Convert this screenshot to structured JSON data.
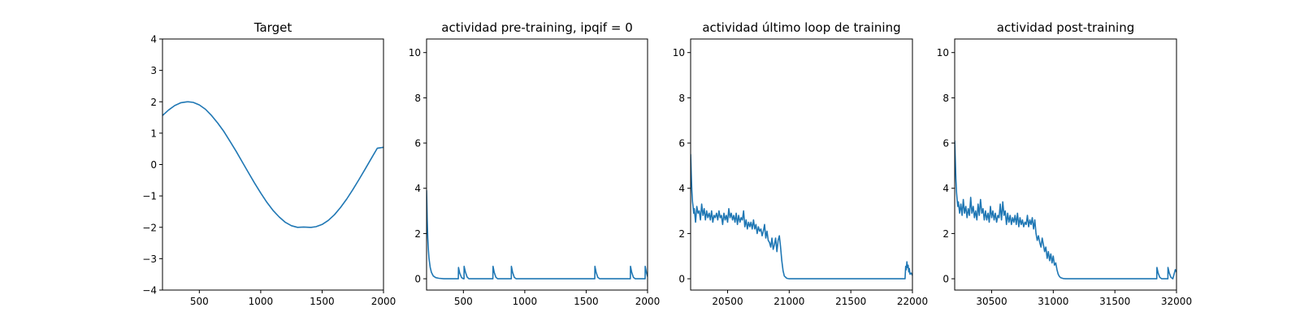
{
  "chart_data": [
    {
      "type": "line",
      "title": "Target",
      "xlabel": "",
      "ylabel": "",
      "xlim": [
        200,
        2000
      ],
      "ylim": [
        -4,
        4
      ],
      "x_ticks": [
        500,
        1000,
        1500,
        2000
      ],
      "y_ticks": [
        -4,
        -3,
        -2,
        -1,
        0,
        1,
        2,
        3,
        4
      ],
      "line_color": "#1f77b4",
      "grid": false,
      "x": [
        200,
        250,
        300,
        350,
        400,
        412,
        450,
        500,
        550,
        600,
        650,
        700,
        750,
        800,
        850,
        900,
        950,
        1000,
        1050,
        1100,
        1150,
        1200,
        1250,
        1300,
        1350,
        1400,
        1412,
        1450,
        1500,
        1550,
        1600,
        1650,
        1700,
        1750,
        1800,
        1850,
        1900,
        1950,
        2000
      ],
      "y": [
        1.56,
        1.74,
        1.88,
        1.97,
        2.0,
        2.0,
        1.98,
        1.9,
        1.76,
        1.56,
        1.32,
        1.05,
        0.74,
        0.42,
        0.08,
        -0.26,
        -0.59,
        -0.91,
        -1.2,
        -1.46,
        -1.67,
        -1.84,
        -1.95,
        -2.0,
        -1.99,
        -2.0,
        -2.0,
        -1.98,
        -1.91,
        -1.78,
        -1.6,
        -1.37,
        -1.1,
        -0.8,
        -0.48,
        -0.15,
        0.19,
        0.52,
        0.55
      ]
    },
    {
      "type": "line",
      "title": "actividad pre-training, ipqif = 0",
      "xlabel": "",
      "ylabel": "",
      "xlim": [
        200,
        2000
      ],
      "ylim": [
        -0.5,
        10.6
      ],
      "x_ticks": [
        500,
        1000,
        1500,
        2000
      ],
      "y_ticks": [
        0,
        2,
        4,
        6,
        8,
        10
      ],
      "line_color": "#1f77b4",
      "grid": false,
      "x": [
        200,
        205,
        210,
        215,
        220,
        230,
        240,
        255,
        275,
        300,
        340,
        400,
        459,
        460,
        462,
        470,
        485,
        500,
        505,
        506,
        508,
        516,
        530,
        545,
        740,
        741,
        743,
        751,
        765,
        780,
        890,
        891,
        893,
        901,
        915,
        930,
        1570,
        1571,
        1573,
        1581,
        1595,
        1610,
        1860,
        1861,
        1863,
        1871,
        1885,
        1900,
        1980,
        1981,
        1983,
        1991,
        2000
      ],
      "y": [
        3.9,
        2.6,
        1.8,
        1.25,
        0.9,
        0.5,
        0.28,
        0.12,
        0.05,
        0.02,
        0.0,
        0.0,
        0.0,
        0.5,
        0.45,
        0.25,
        0.05,
        0.0,
        0.0,
        0.55,
        0.5,
        0.3,
        0.08,
        0.0,
        0.0,
        0.55,
        0.5,
        0.28,
        0.06,
        0.0,
        0.0,
        0.55,
        0.5,
        0.28,
        0.06,
        0.0,
        0.0,
        0.55,
        0.5,
        0.28,
        0.06,
        0.0,
        0.0,
        0.55,
        0.5,
        0.28,
        0.06,
        0.0,
        0.0,
        0.55,
        0.5,
        0.28,
        0.1
      ]
    },
    {
      "type": "line",
      "title": "actividad último loop de training",
      "xlabel": "",
      "ylabel": "",
      "xlim": [
        20200,
        22000
      ],
      "ylim": [
        -0.5,
        10.6
      ],
      "x_ticks": [
        20500,
        21000,
        21500,
        22000
      ],
      "y_ticks": [
        0,
        2,
        4,
        6,
        8,
        10
      ],
      "line_color": "#1f77b4",
      "grid": false,
      "x": [
        20200,
        20205,
        20210,
        20215,
        20220,
        20225,
        20230,
        20240,
        20250,
        20260,
        20270,
        20280,
        20290,
        20300,
        20310,
        20320,
        20330,
        20340,
        20350,
        20360,
        20370,
        20380,
        20390,
        20400,
        20410,
        20420,
        20430,
        20440,
        20450,
        20460,
        20470,
        20480,
        20490,
        20500,
        20510,
        20520,
        20530,
        20540,
        20550,
        20560,
        20570,
        20580,
        20590,
        20600,
        20610,
        20620,
        20630,
        20640,
        20650,
        20660,
        20670,
        20680,
        20690,
        20700,
        20710,
        20720,
        20730,
        20740,
        20750,
        20760,
        20770,
        20780,
        20790,
        20800,
        20810,
        20820,
        20830,
        20840,
        20850,
        20860,
        20870,
        20880,
        20890,
        20900,
        20910,
        20920,
        20930,
        20940,
        20950,
        20960,
        20980,
        21000,
        21020,
        21050,
        21100,
        21200,
        21300,
        21400,
        21500,
        21600,
        21700,
        21800,
        21900,
        21940,
        21945,
        21950,
        21955,
        21960,
        21965,
        21970,
        21975,
        21980,
        21990,
        22000
      ],
      "y": [
        5.5,
        4.6,
        3.9,
        3.4,
        3.2,
        2.9,
        3.1,
        2.5,
        3.2,
        2.9,
        3.0,
        2.6,
        3.3,
        2.8,
        3.1,
        2.6,
        3.0,
        2.7,
        2.9,
        2.6,
        3.0,
        2.5,
        2.8,
        2.7,
        2.9,
        2.6,
        3.0,
        2.7,
        2.8,
        2.4,
        2.9,
        2.6,
        2.8,
        2.5,
        3.1,
        2.7,
        2.9,
        2.6,
        2.8,
        2.5,
        2.9,
        2.4,
        2.8,
        2.5,
        2.7,
        2.6,
        3.0,
        2.3,
        2.6,
        2.2,
        2.5,
        2.3,
        2.5,
        2.2,
        2.6,
        2.2,
        2.4,
        2.0,
        2.3,
        2.1,
        2.2,
        1.9,
        2.1,
        2.4,
        1.8,
        2.1,
        1.7,
        1.6,
        1.4,
        1.8,
        1.3,
        1.5,
        1.8,
        1.2,
        1.7,
        1.9,
        1.4,
        0.8,
        0.35,
        0.12,
        0.02,
        0.0,
        0.0,
        0.0,
        0.0,
        0.0,
        0.0,
        0.0,
        0.0,
        0.0,
        0.0,
        0.0,
        0.0,
        0.0,
        0.55,
        0.4,
        0.75,
        0.5,
        0.6,
        0.3,
        0.45,
        0.2,
        0.25,
        0.15
      ]
    },
    {
      "type": "line",
      "title": "actividad post-training",
      "xlabel": "",
      "ylabel": "",
      "xlim": [
        30200,
        32000
      ],
      "ylim": [
        -0.5,
        10.6
      ],
      "x_ticks": [
        30500,
        31000,
        31500,
        32000
      ],
      "y_ticks": [
        0,
        2,
        4,
        6,
        8,
        10
      ],
      "line_color": "#1f77b4",
      "grid": false,
      "x": [
        30200,
        30205,
        30210,
        30215,
        30220,
        30225,
        30230,
        30240,
        30250,
        30260,
        30270,
        30280,
        30290,
        30300,
        30310,
        30320,
        30330,
        30340,
        30350,
        30360,
        30370,
        30380,
        30390,
        30400,
        30410,
        30420,
        30430,
        30440,
        30450,
        30460,
        30470,
        30480,
        30490,
        30500,
        30510,
        30520,
        30530,
        30540,
        30550,
        30560,
        30570,
        30580,
        30590,
        30600,
        30610,
        30620,
        30630,
        30640,
        30650,
        30660,
        30670,
        30680,
        30690,
        30700,
        30710,
        30720,
        30730,
        30740,
        30750,
        30760,
        30770,
        30780,
        30790,
        30800,
        30810,
        30820,
        30830,
        30840,
        30850,
        30860,
        30870,
        30880,
        30890,
        30900,
        30910,
        30920,
        30930,
        30940,
        30950,
        30960,
        30970,
        30980,
        30990,
        31000,
        31010,
        31020,
        31030,
        31040,
        31050,
        31060,
        31080,
        31100,
        31150,
        31200,
        31300,
        31400,
        31500,
        31600,
        31700,
        31800,
        31840,
        31841,
        31843,
        31851,
        31865,
        31880,
        31930,
        31931,
        31933,
        31941,
        31955,
        31970,
        31990,
        32000
      ],
      "y": [
        6.1,
        5.2,
        4.4,
        3.8,
        3.5,
        3.2,
        3.4,
        2.9,
        3.3,
        2.8,
        3.5,
        2.9,
        3.2,
        2.7,
        3.1,
        2.8,
        3.6,
        2.9,
        3.2,
        2.7,
        3.0,
        2.6,
        3.3,
        2.8,
        3.5,
        2.9,
        3.1,
        2.6,
        3.0,
        2.6,
        2.9,
        2.5,
        3.2,
        2.7,
        3.0,
        2.6,
        2.9,
        2.5,
        2.8,
        2.7,
        3.3,
        2.6,
        3.4,
        2.8,
        3.0,
        2.4,
        2.9,
        2.5,
        2.8,
        2.4,
        2.7,
        2.5,
        2.8,
        2.4,
        2.9,
        2.3,
        2.7,
        2.4,
        2.6,
        2.3,
        2.5,
        2.4,
        2.8,
        2.3,
        2.6,
        2.4,
        2.7,
        2.2,
        2.6,
        2.0,
        1.7,
        1.9,
        1.6,
        1.4,
        1.8,
        1.5,
        1.2,
        1.4,
        0.9,
        1.2,
        0.8,
        1.1,
        0.7,
        1.0,
        0.6,
        0.7,
        0.4,
        0.2,
        0.1,
        0.05,
        0.01,
        0.0,
        0.0,
        0.0,
        0.0,
        0.0,
        0.0,
        0.0,
        0.0,
        0.0,
        0.0,
        0.5,
        0.45,
        0.25,
        0.06,
        0.0,
        0.0,
        0.5,
        0.45,
        0.25,
        0.06,
        0.0,
        0.4,
        0.3
      ]
    }
  ]
}
